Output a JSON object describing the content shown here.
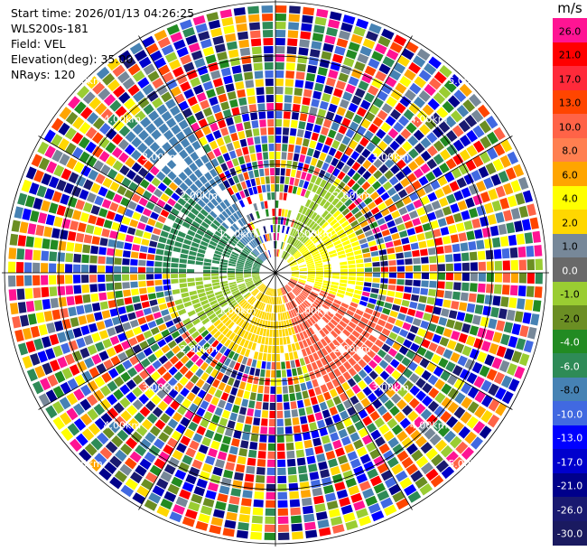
{
  "info": {
    "start_time": "Start time: 2026/01/13 04:26:25",
    "instrument": "WLS200s-181",
    "field": "Field: VEL",
    "elevation": "Elevation(deg): 35.00",
    "nrays": "NRays: 120"
  },
  "range_ring_labels": [
    "1.00km",
    "2.00km",
    "3.00km",
    "4.00km",
    "5.00km"
  ],
  "colorbar": {
    "unit": "m/s",
    "segments": [
      {
        "label": "26.0",
        "color": "#ff1493"
      },
      {
        "label": "21.0",
        "color": "#ff0000"
      },
      {
        "label": "17.0",
        "color": "#ff2a3a"
      },
      {
        "label": "13.0",
        "color": "#ff4500"
      },
      {
        "label": "10.0",
        "color": "#ff6347"
      },
      {
        "label": "8.0",
        "color": "#ff7f50"
      },
      {
        "label": "6.0",
        "color": "#ffa500"
      },
      {
        "label": "4.0",
        "color": "#ffff00"
      },
      {
        "label": "2.0",
        "color": "#ffd700"
      },
      {
        "label": "1.0",
        "color": "#778899"
      },
      {
        "label": "0.0",
        "color": "#696969"
      },
      {
        "label": "-1.0",
        "color": "#9acd32"
      },
      {
        "label": "-2.0",
        "color": "#6b8e23"
      },
      {
        "label": "-4.0",
        "color": "#228b22"
      },
      {
        "label": "-6.0",
        "color": "#2e8b57"
      },
      {
        "label": "-8.0",
        "color": "#4682b4"
      },
      {
        "label": "-10.0",
        "color": "#4169e1"
      },
      {
        "label": "-13.0",
        "color": "#0000ff"
      },
      {
        "label": "-17.0",
        "color": "#0000cd"
      },
      {
        "label": "-21.0",
        "color": "#00008b"
      },
      {
        "label": "-26.0",
        "color": "#191970"
      },
      {
        "label": "-30.0",
        "color": "#1a1a60"
      }
    ]
  },
  "ppi": {
    "nrays": 120,
    "max_range_km": 5.0,
    "noise_palette": [
      "#ff1493",
      "#ff0000",
      "#ff4500",
      "#ffa500",
      "#ffff00",
      "#ffd700",
      "#778899",
      "#9acd32",
      "#228b22",
      "#2e8b57",
      "#4682b4",
      "#4169e1",
      "#0000ff",
      "#0000cd",
      "#00008b",
      "#191970",
      "#ff6347",
      "#6b8e23"
    ],
    "inner_structure": [
      {
        "az_from": 45,
        "az_to": 110,
        "range_km": 1.5,
        "color": "#ffff00"
      },
      {
        "az_from": 110,
        "az_to": 160,
        "range_km": 2.3,
        "color": "#ff6347"
      },
      {
        "az_from": 160,
        "az_to": 230,
        "range_km": 1.6,
        "color": "#ffd700"
      },
      {
        "az_from": 230,
        "az_to": 270,
        "range_km": 1.8,
        "color": "#9acd32"
      },
      {
        "az_from": 270,
        "az_to": 310,
        "range_km": 2.1,
        "color": "#2e8b57"
      },
      {
        "az_from": 310,
        "az_to": 330,
        "range_km": 3.6,
        "color": "#4682b4"
      },
      {
        "az_from": 20,
        "az_to": 45,
        "range_km": 1.8,
        "color": "#9acd32"
      }
    ]
  }
}
